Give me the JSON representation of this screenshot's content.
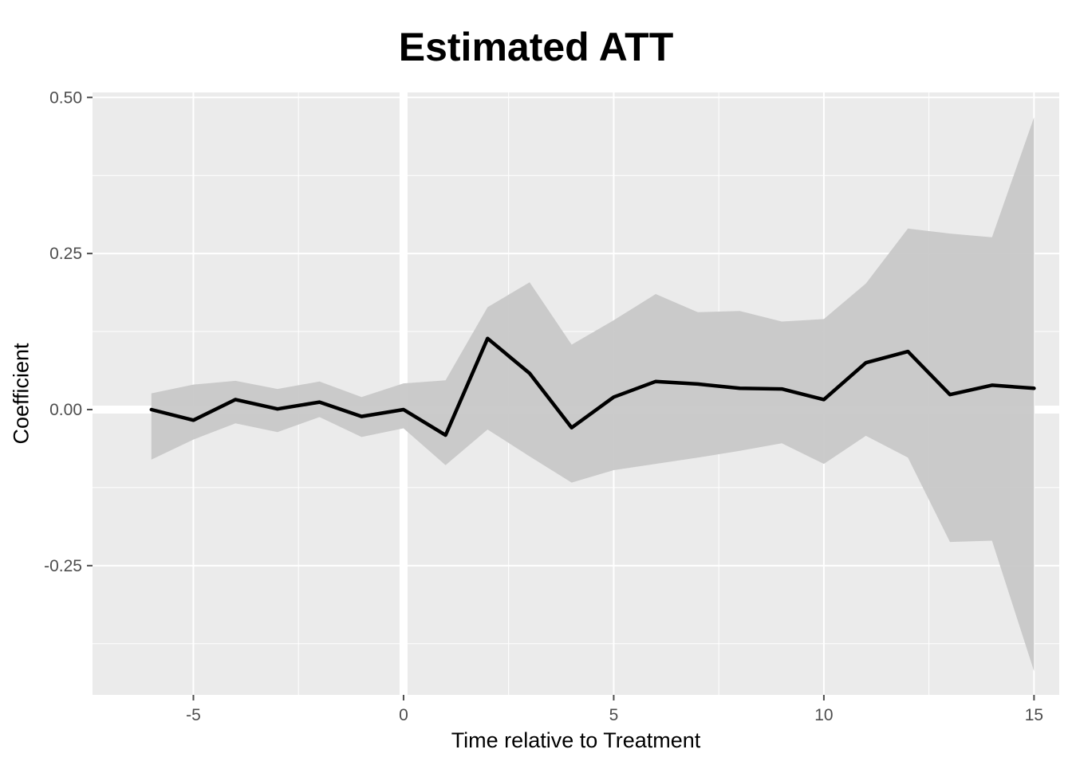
{
  "chart_data": {
    "type": "line",
    "title": "Estimated ATT",
    "xlabel": "Time relative to Treatment",
    "ylabel": "Coefficient",
    "xlim": [
      -7.4,
      15.6
    ],
    "ylim": [
      -0.457,
      0.508
    ],
    "x_ticks": [
      -5,
      0,
      5,
      10,
      15
    ],
    "x_tick_labels": [
      "-5",
      "0",
      "5",
      "10",
      "15"
    ],
    "y_ticks": [
      -0.25,
      0.0,
      0.25,
      0.5
    ],
    "y_tick_labels": [
      "-0.25",
      "0.00",
      "0.25",
      "0.50"
    ],
    "reference_lines": {
      "x": 0,
      "y": 0
    },
    "grid": true,
    "colors": {
      "panel": "#EBEBEB",
      "grid": "#FFFFFF",
      "ribbon": "#C8C8C8",
      "line": "#000000",
      "ticks": "#4D4D4D"
    },
    "x": [
      -6,
      -5,
      -4,
      -3,
      -2,
      -1,
      0,
      1,
      2,
      3,
      4,
      5,
      6,
      7,
      8,
      9,
      10,
      11,
      12,
      13,
      14,
      15
    ],
    "series": [
      {
        "values": [
          0.0,
          -0.017,
          0.016,
          0.001,
          0.012,
          -0.011,
          0.0,
          -0.041,
          0.114,
          0.058,
          -0.029,
          0.02,
          0.045,
          0.041,
          0.034,
          0.033,
          0.016,
          0.075,
          0.093,
          0.024,
          0.039,
          0.034
        ],
        "lower": [
          -0.08,
          -0.048,
          -0.022,
          -0.036,
          -0.012,
          -0.044,
          -0.03,
          -0.089,
          -0.032,
          -0.075,
          -0.117,
          -0.097,
          -0.087,
          -0.077,
          -0.066,
          -0.054,
          -0.087,
          -0.042,
          -0.077,
          -0.212,
          -0.21,
          -0.419
        ],
        "upper": [
          0.026,
          0.04,
          0.046,
          0.033,
          0.045,
          0.02,
          0.042,
          0.047,
          0.164,
          0.204,
          0.104,
          0.143,
          0.185,
          0.156,
          0.158,
          0.141,
          0.145,
          0.202,
          0.29,
          0.282,
          0.276,
          0.468
        ]
      }
    ]
  }
}
